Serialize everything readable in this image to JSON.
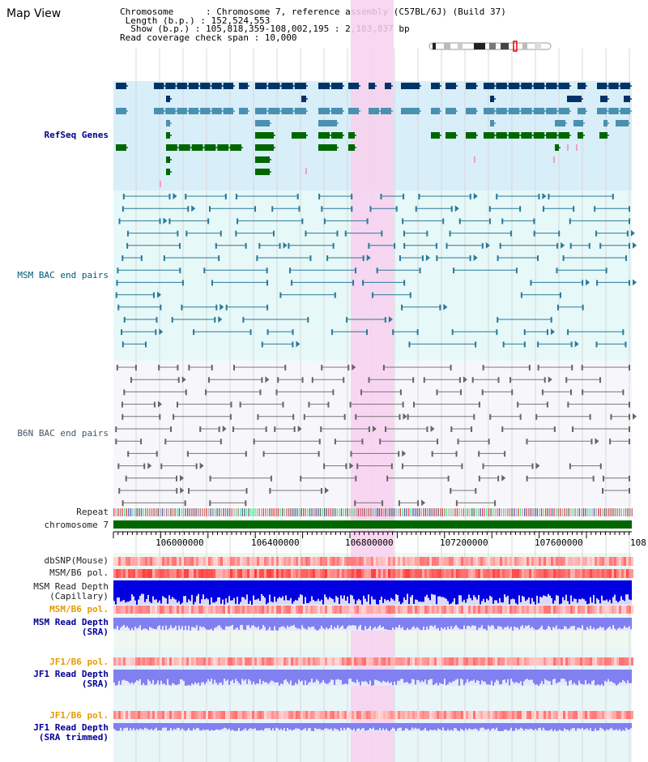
{
  "title": "Map View",
  "info": {
    "chromosome": "Chromosome      : Chromosome 7, reference assembly (C57BL/6J) (Build 37)",
    "length": " Length (b.p.) : 152,524,553",
    "show": "  Show (b.p.) : 105,818,359-108,002,195 : 2,183,837 bp",
    "coverage": "Read coverage check span : 10,000"
  },
  "tracks": {
    "refseq": "RefSeq Genes",
    "msm_bac": "MSM BAC end pairs",
    "b6n_bac": "B6N BAC end pairs",
    "repeat": "Repeat",
    "chromosome": "chromosome 7",
    "dbsnp": "dbSNP(Mouse)",
    "msm_b6_pol": "MSM/B6 pol.",
    "msm_depth_cap": "MSM Read Depth\n(Capillary)",
    "msm_b6_pol2": "MSM/B6 pol.",
    "msm_depth_sra": "MSM Read Depth\n(SRA)",
    "jf1_b6_pol": "JF1/B6 pol.",
    "jf1_depth_sra": "JF1 Read Depth\n(SRA)",
    "jf1_b6_pol2": "JF1/B6 pol.",
    "jf1_depth_trim": "JF1 Read Depth\n(SRA trimmed)"
  },
  "axis": {
    "ticks": [
      "106000000",
      "106400000",
      "106800000",
      "107200000",
      "107600000",
      "108"
    ]
  },
  "colors": {
    "refseq_bg": "#d8eef8",
    "bac_bg": "#e6f8f8",
    "highlight": "#f8d0ee",
    "gene_dark": "#003366",
    "gene_mid": "#4a90b0",
    "gene_green": "#006600",
    "chromosome_bar": "#006600",
    "snp": "#ff8080",
    "depth_cap": "#0000e0",
    "depth_sra": "#8080f0"
  }
}
